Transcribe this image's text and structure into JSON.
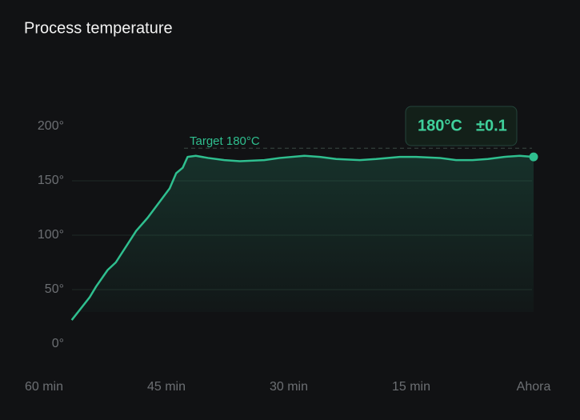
{
  "chart_data": {
    "type": "line",
    "title": "Process temperature",
    "x": [
      -56.6,
      -54.4,
      -53.6,
      -52.2,
      -51.2,
      -48.7,
      -47.3,
      -45.8,
      -44.6,
      -43.8,
      -43,
      -42.4,
      -41.4,
      -39.9,
      -37.9,
      -36,
      -33,
      -31.1,
      -28.1,
      -26.2,
      -24.2,
      -21.3,
      -19.3,
      -16.4,
      -14.4,
      -11.5,
      -9.5,
      -7.5,
      -5.6,
      -3.6,
      -1.7,
      0
    ],
    "series": [
      {
        "name": "Temperature",
        "color": "#2fbf8f",
        "values": [
          22,
          43,
          53,
          68,
          75,
          104,
          116,
          131,
          143,
          157,
          162,
          172,
          173,
          171,
          169,
          168,
          169,
          171,
          173,
          172,
          170,
          169,
          170,
          172,
          172,
          171,
          169,
          169,
          170,
          172,
          173,
          172
        ]
      }
    ],
    "target": 180,
    "target_label": "Target 180°C",
    "badge": {
      "value": "180°C",
      "tolerance": "±0.1"
    },
    "xlim": [
      -60,
      0
    ],
    "xticks": [
      {
        "value": -60,
        "label": "60 min"
      },
      {
        "value": -45,
        "label": "45 min"
      },
      {
        "value": -30,
        "label": "30 min"
      },
      {
        "value": -15,
        "label": "15 min"
      },
      {
        "value": 0,
        "label": "Ahora"
      }
    ],
    "ylim": [
      0,
      200
    ],
    "yticks": [
      {
        "value": 0,
        "label": "0°"
      },
      {
        "value": 50,
        "label": "50°"
      },
      {
        "value": 100,
        "label": "100°"
      },
      {
        "value": 150,
        "label": "150°"
      },
      {
        "value": 200,
        "label": "200°"
      }
    ],
    "grid": true
  }
}
